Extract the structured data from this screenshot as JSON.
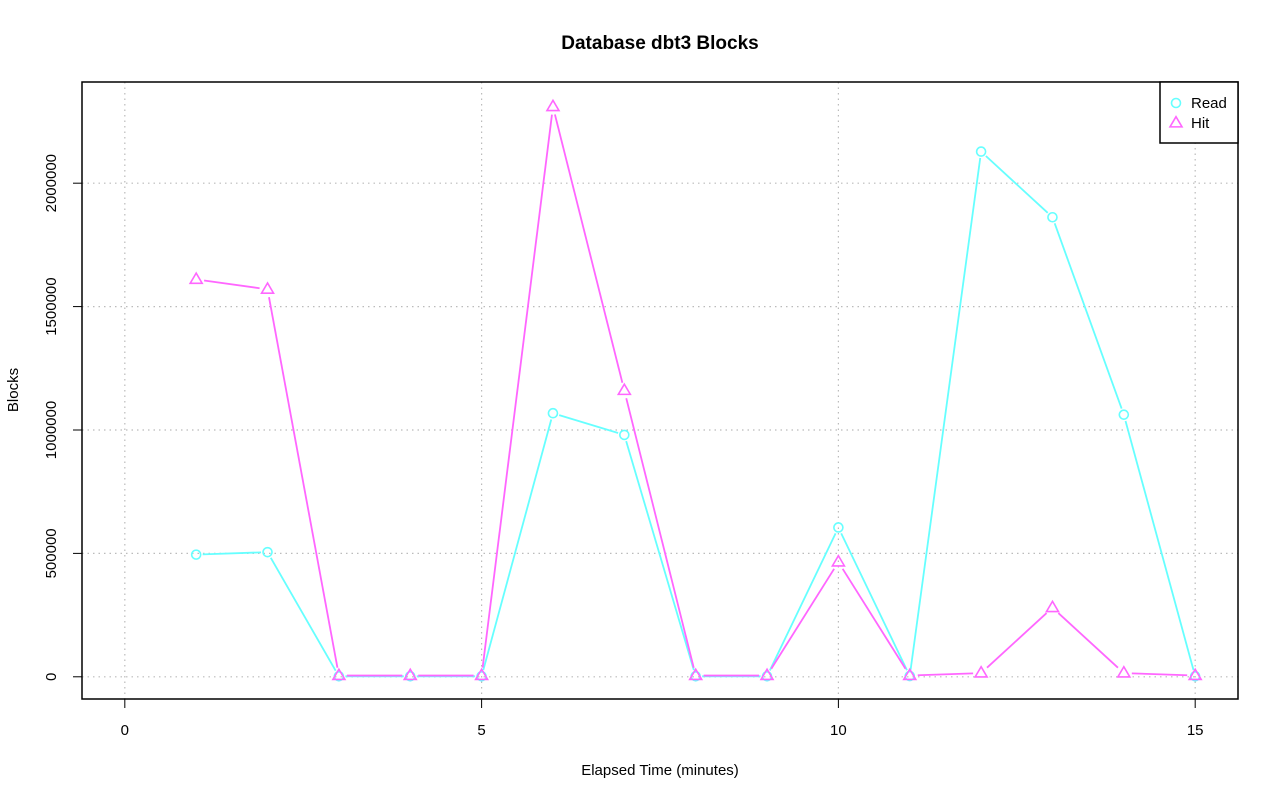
{
  "chart_data": {
    "type": "line",
    "title": "Database dbt3 Blocks",
    "xlabel": "Elapsed Time (minutes)",
    "ylabel": "Blocks",
    "xlim": [
      -0.6,
      15.6
    ],
    "ylim": [
      -90000,
      2410000
    ],
    "x_ticks": [
      0,
      5,
      10,
      15
    ],
    "y_ticks": [
      0,
      500000,
      1000000,
      1500000,
      2000000
    ],
    "grid": true,
    "legend_position": "top-right",
    "x": [
      1,
      2,
      3,
      4,
      5,
      6,
      7,
      8,
      9,
      10,
      11,
      12,
      13,
      14,
      15
    ],
    "series": [
      {
        "name": "Read",
        "color": "#66ffff",
        "marker": "circle",
        "values": [
          495000,
          505000,
          2000,
          2000,
          2000,
          1068000,
          980000,
          2000,
          2000,
          605000,
          3000,
          2128000,
          1862000,
          1062000,
          2000
        ]
      },
      {
        "name": "Hit",
        "color": "#ff66ff",
        "marker": "triangle",
        "values": [
          1610000,
          1570000,
          5000,
          5000,
          5000,
          2310000,
          1160000,
          5000,
          5000,
          465000,
          5000,
          15000,
          280000,
          15000,
          5000
        ]
      }
    ]
  }
}
